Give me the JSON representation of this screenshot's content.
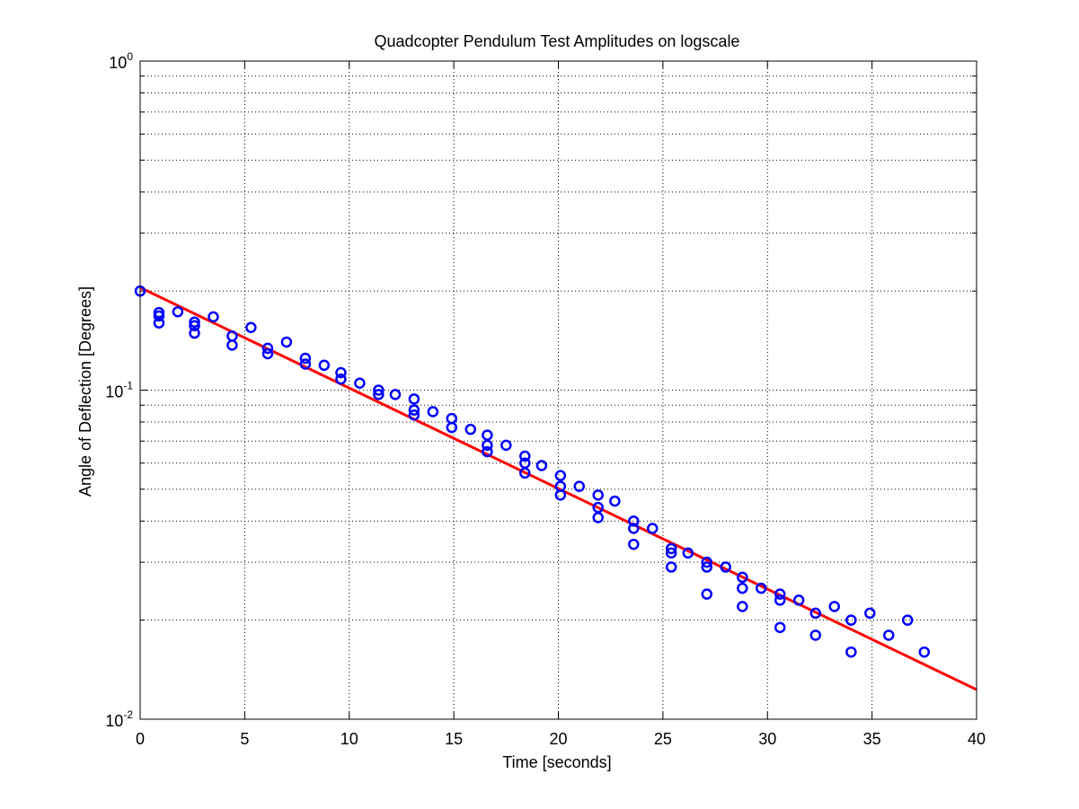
{
  "chart_data": {
    "type": "scatter",
    "title": "Quadcopter Pendulum Test Amplitudes on logscale",
    "xlabel": "Time [seconds]",
    "ylabel": "Angle of Deflection [Degrees]",
    "xlim": [
      0,
      40
    ],
    "ylim": [
      0.01,
      1
    ],
    "yscale": "log",
    "grid": true,
    "x_ticks": [
      0,
      5,
      10,
      15,
      20,
      25,
      30,
      35,
      40
    ],
    "y_ticks": [
      {
        "value": 1,
        "base": "10",
        "exp": "0"
      },
      {
        "value": 0.1,
        "base": "10",
        "exp": "-1"
      },
      {
        "value": 0.01,
        "base": "10",
        "exp": "-2"
      }
    ],
    "series": [
      {
        "kind": "points",
        "color": "#0000ff",
        "marker": "circle",
        "points": [
          [
            0,
            0.2
          ],
          [
            0.9,
            0.172
          ],
          [
            0.9,
            0.168
          ],
          [
            0.9,
            0.16
          ],
          [
            1.8,
            0.173
          ],
          [
            2.6,
            0.161
          ],
          [
            2.6,
            0.157
          ],
          [
            2.6,
            0.149
          ],
          [
            3.5,
            0.167
          ],
          [
            4.4,
            0.146
          ],
          [
            4.4,
            0.137
          ],
          [
            5.3,
            0.155
          ],
          [
            6.1,
            0.134
          ],
          [
            6.1,
            0.129
          ],
          [
            7.0,
            0.14
          ],
          [
            7.9,
            0.125
          ],
          [
            7.9,
            0.12
          ],
          [
            8.8,
            0.119
          ],
          [
            9.6,
            0.113
          ],
          [
            9.6,
            0.108
          ],
          [
            10.5,
            0.105
          ],
          [
            11.4,
            0.1
          ],
          [
            11.4,
            0.097
          ],
          [
            12.2,
            0.097
          ],
          [
            13.1,
            0.094
          ],
          [
            13.1,
            0.087
          ],
          [
            13.1,
            0.084
          ],
          [
            14.0,
            0.086
          ],
          [
            14.9,
            0.082
          ],
          [
            14.9,
            0.077
          ],
          [
            15.8,
            0.076
          ],
          [
            16.6,
            0.073
          ],
          [
            16.6,
            0.068
          ],
          [
            16.6,
            0.065
          ],
          [
            17.5,
            0.068
          ],
          [
            18.4,
            0.063
          ],
          [
            18.4,
            0.06
          ],
          [
            18.4,
            0.056
          ],
          [
            19.2,
            0.059
          ],
          [
            20.1,
            0.055
          ],
          [
            20.1,
            0.051
          ],
          [
            20.1,
            0.048
          ],
          [
            21.0,
            0.051
          ],
          [
            21.9,
            0.048
          ],
          [
            21.9,
            0.044
          ],
          [
            21.9,
            0.041
          ],
          [
            22.7,
            0.046
          ],
          [
            23.6,
            0.04
          ],
          [
            23.6,
            0.038
          ],
          [
            23.6,
            0.034
          ],
          [
            24.5,
            0.038
          ],
          [
            25.4,
            0.033
          ],
          [
            25.4,
            0.032
          ],
          [
            25.4,
            0.029
          ],
          [
            26.2,
            0.032
          ],
          [
            27.1,
            0.03
          ],
          [
            27.1,
            0.029
          ],
          [
            27.1,
            0.024
          ],
          [
            28.0,
            0.029
          ],
          [
            28.8,
            0.027
          ],
          [
            28.8,
            0.025
          ],
          [
            28.8,
            0.022
          ],
          [
            29.7,
            0.025
          ],
          [
            30.6,
            0.024
          ],
          [
            30.6,
            0.023
          ],
          [
            30.6,
            0.019
          ],
          [
            31.5,
            0.023
          ],
          [
            32.3,
            0.021
          ],
          [
            32.3,
            0.018
          ],
          [
            33.2,
            0.022
          ],
          [
            34.0,
            0.02
          ],
          [
            34.0,
            0.016
          ],
          [
            34.9,
            0.021
          ],
          [
            35.8,
            0.018
          ],
          [
            36.7,
            0.02
          ],
          [
            37.5,
            0.016
          ]
        ]
      },
      {
        "kind": "line",
        "color": "#ff0000",
        "x": [
          0,
          40
        ],
        "y": [
          0.205,
          0.0123
        ]
      }
    ]
  }
}
